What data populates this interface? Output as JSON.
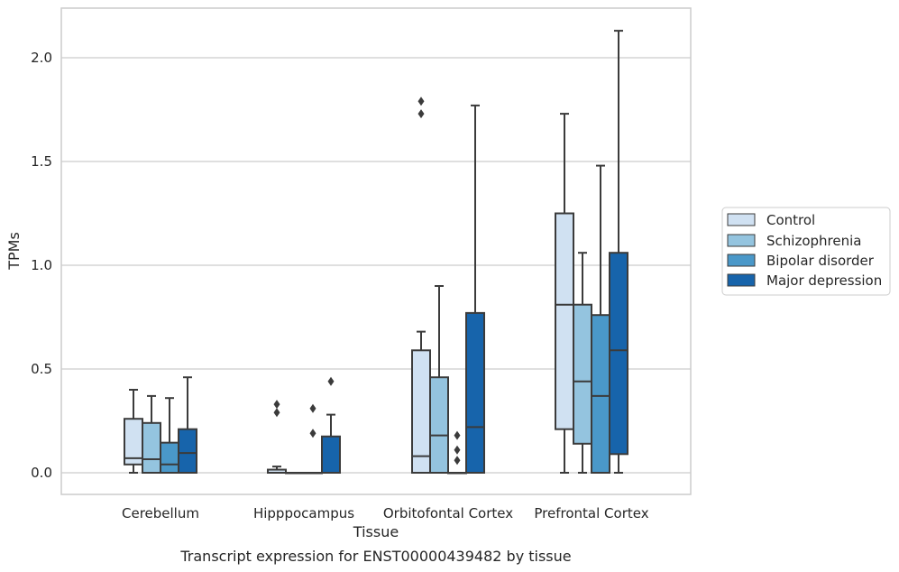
{
  "caption": "Transcript expression for ENST00000439482 by tissue",
  "chart_data": {
    "type": "box",
    "title": "",
    "xlabel": "Tissue",
    "ylabel": "TPMs",
    "ylim": [
      -0.1,
      2.25
    ],
    "yticks": [
      0.0,
      0.5,
      1.0,
      1.5,
      2.0
    ],
    "ytick_labels": [
      "0.0",
      "0.5",
      "1.0",
      "1.5",
      "2.0"
    ],
    "grid": "horizontal",
    "legend_position": "right",
    "categories": [
      "Cerebellum",
      "Hipppocampus",
      "Orbitofontal Cortex",
      "Prefrontal Cortex"
    ],
    "series": [
      {
        "name": "Control",
        "color": "#d0e1f2",
        "boxes": [
          {
            "whislo": 0.0,
            "q1": 0.04,
            "med": 0.07,
            "q3": 0.26,
            "whishi": 0.4,
            "fliers": []
          },
          {
            "whislo": 0.0,
            "q1": 0.0,
            "med": 0.0,
            "q3": 0.015,
            "whishi": 0.03,
            "fliers": [
              0.29,
              0.33
            ]
          },
          {
            "whislo": 0.0,
            "q1": 0.0,
            "med": 0.08,
            "q3": 0.59,
            "whishi": 0.68,
            "fliers": [
              1.73,
              1.79
            ]
          },
          {
            "whislo": 0.0,
            "q1": 0.21,
            "med": 0.81,
            "q3": 1.25,
            "whishi": 1.73,
            "fliers": []
          }
        ]
      },
      {
        "name": "Schizophrenia",
        "color": "#94c4df",
        "boxes": [
          {
            "whislo": 0.0,
            "q1": 0.0,
            "med": 0.065,
            "q3": 0.24,
            "whishi": 0.37,
            "fliers": []
          },
          {
            "whislo": 0.0,
            "q1": 0.0,
            "med": 0.0,
            "q3": 0.0,
            "whishi": 0.0,
            "fliers": []
          },
          {
            "whislo": 0.0,
            "q1": 0.0,
            "med": 0.18,
            "q3": 0.46,
            "whishi": 0.9,
            "fliers": []
          },
          {
            "whislo": 0.0,
            "q1": 0.14,
            "med": 0.44,
            "q3": 0.81,
            "whishi": 1.06,
            "fliers": []
          }
        ]
      },
      {
        "name": "Bipolar disorder",
        "color": "#4a98c9",
        "boxes": [
          {
            "whislo": 0.0,
            "q1": 0.0,
            "med": 0.04,
            "q3": 0.145,
            "whishi": 0.36,
            "fliers": []
          },
          {
            "whislo": 0.0,
            "q1": 0.0,
            "med": 0.0,
            "q3": 0.0,
            "whishi": 0.0,
            "fliers": [
              0.19,
              0.31
            ]
          },
          {
            "whislo": 0.0,
            "q1": 0.0,
            "med": 0.0,
            "q3": 0.0,
            "whishi": 0.0,
            "fliers": [
              0.06,
              0.11,
              0.18
            ]
          },
          {
            "whislo": 0.0,
            "q1": 0.0,
            "med": 0.37,
            "q3": 0.76,
            "whishi": 1.48,
            "fliers": []
          }
        ]
      },
      {
        "name": "Major depression",
        "color": "#1764ab",
        "boxes": [
          {
            "whislo": 0.0,
            "q1": 0.0,
            "med": 0.095,
            "q3": 0.21,
            "whishi": 0.46,
            "fliers": []
          },
          {
            "whislo": 0.0,
            "q1": 0.0,
            "med": 0.0,
            "q3": 0.175,
            "whishi": 0.28,
            "fliers": [
              0.44
            ]
          },
          {
            "whislo": 0.0,
            "q1": 0.0,
            "med": 0.22,
            "q3": 0.77,
            "whishi": 1.77,
            "fliers": []
          },
          {
            "whislo": 0.0,
            "q1": 0.09,
            "med": 0.59,
            "q3": 1.06,
            "whishi": 2.13,
            "fliers": []
          }
        ]
      }
    ]
  }
}
